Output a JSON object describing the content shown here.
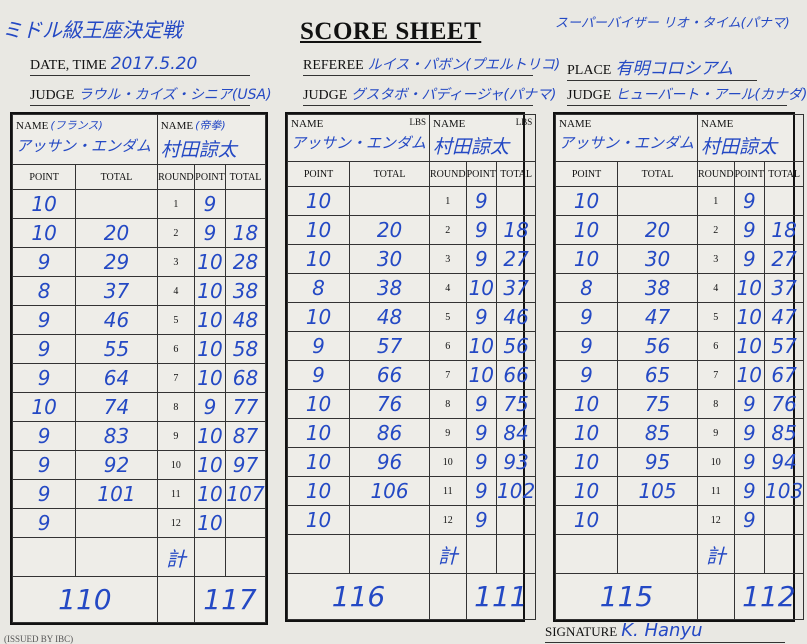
{
  "header": {
    "bout": "ミドル級王座決定戦",
    "title": "SCORE SHEET",
    "supervisor": "スーパーバイザー リオ・タイム(パナマ)",
    "date_label": "DATE, TIME",
    "date": "2017.5.20",
    "referee_label": "REFEREE",
    "referee": "ルイス・パボン(プエルトリコ)",
    "place_label": "PLACE",
    "place": "有明コロシアム",
    "judge_label": "JUDGE",
    "judges": [
      "ラウル・カイズ・シニア(USA)",
      "グスタボ・パディージャ(パナマ)",
      "ヒューバート・アール(カナダ)"
    ]
  },
  "columns": {
    "name": "NAME",
    "lbs": "LBS",
    "point": "POINT",
    "total": "TOTAL",
    "round": "ROUND",
    "sum": "計"
  },
  "rounds": [
    "1",
    "2",
    "3",
    "4",
    "5",
    "6",
    "7",
    "8",
    "9",
    "10",
    "11",
    "12"
  ],
  "cards": [
    {
      "red": {
        "name": "アッサン・エンダム",
        "note": "(フランス)"
      },
      "blue": {
        "name": "村田諒太",
        "note": "(帝拳)"
      },
      "show_lbs": false,
      "red_points": [
        "10",
        "10",
        "9",
        "8",
        "9",
        "9",
        "9",
        "10",
        "9",
        "9",
        "9",
        "9"
      ],
      "red_totals": [
        "",
        "20",
        "29",
        "37",
        "46",
        "55",
        "64",
        "74",
        "83",
        "92",
        "101",
        ""
      ],
      "blue_points": [
        "9",
        "9",
        "10",
        "10",
        "10",
        "10",
        "10",
        "9",
        "10",
        "10",
        "10",
        "10"
      ],
      "blue_totals": [
        "",
        "18",
        "28",
        "38",
        "48",
        "58",
        "68",
        "77",
        "87",
        "97",
        "107",
        ""
      ],
      "red_final": "110",
      "blue_final": "117"
    },
    {
      "red": {
        "name": "アッサン・エンダム",
        "note": ""
      },
      "blue": {
        "name": "村田諒太",
        "note": ""
      },
      "show_lbs": true,
      "red_points": [
        "10",
        "10",
        "10",
        "8",
        "10",
        "9",
        "9",
        "10",
        "10",
        "10",
        "10",
        "10"
      ],
      "red_totals": [
        "",
        "20",
        "30",
        "38",
        "48",
        "57",
        "66",
        "76",
        "86",
        "96",
        "106",
        ""
      ],
      "blue_points": [
        "9",
        "9",
        "9",
        "10",
        "9",
        "10",
        "10",
        "9",
        "9",
        "9",
        "9",
        "9"
      ],
      "blue_totals": [
        "",
        "18",
        "27",
        "37",
        "46",
        "56",
        "66",
        "75",
        "84",
        "93",
        "102",
        ""
      ],
      "red_final": "116",
      "blue_final": "111"
    },
    {
      "red": {
        "name": "アッサン・エンダム",
        "note": ""
      },
      "blue": {
        "name": "村田諒太",
        "note": ""
      },
      "show_lbs": false,
      "red_points": [
        "10",
        "10",
        "10",
        "8",
        "9",
        "9",
        "9",
        "10",
        "10",
        "10",
        "10",
        "10"
      ],
      "red_totals": [
        "",
        "20",
        "30",
        "38",
        "47",
        "56",
        "65",
        "75",
        "85",
        "95",
        "105",
        ""
      ],
      "blue_points": [
        "9",
        "9",
        "9",
        "10",
        "10",
        "10",
        "10",
        "9",
        "9",
        "9",
        "9",
        "9"
      ],
      "blue_totals": [
        "",
        "18",
        "27",
        "37",
        "47",
        "57",
        "67",
        "76",
        "85",
        "94",
        "103",
        ""
      ],
      "red_final": "115",
      "blue_final": "112"
    }
  ],
  "footer": {
    "issued": "(ISSUED BY IBC)",
    "signature_label": "SIGNATURE",
    "signature": "K. Hanyu"
  }
}
